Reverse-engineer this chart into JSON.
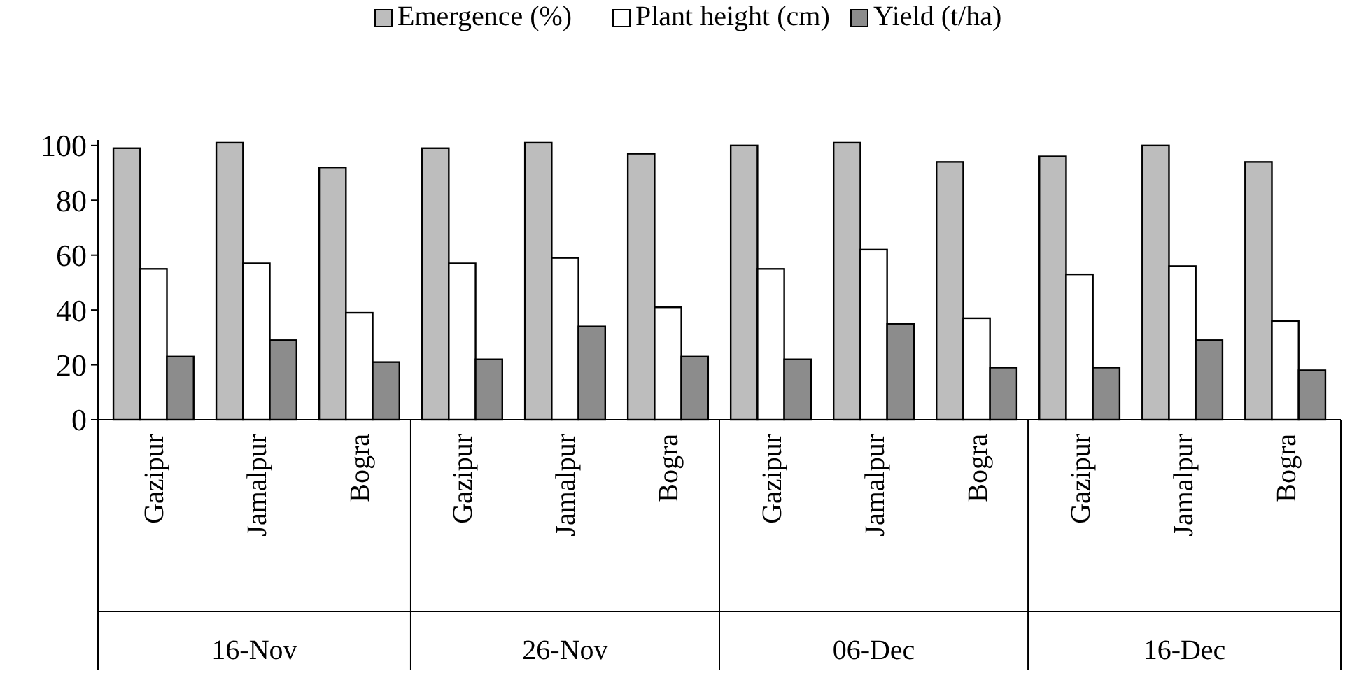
{
  "chart_data": {
    "type": "bar",
    "categories": [
      "Gazipur",
      "Jamalpur",
      "Bogra",
      "Gazipur",
      "Jamalpur",
      "Bogra",
      "Gazipur",
      "Jamalpur",
      "Bogra",
      "Gazipur",
      "Jamalpur",
      "Bogra"
    ],
    "series": [
      {
        "name": "Emergence (%)",
        "color": "#bdbdbd",
        "values": [
          99,
          101,
          92,
          99,
          101,
          97,
          100,
          101,
          94,
          96,
          100,
          94
        ]
      },
      {
        "name": "Plant height (cm)",
        "color": "#ffffff",
        "values": [
          55,
          57,
          39,
          57,
          59,
          41,
          55,
          62,
          37,
          53,
          56,
          36
        ]
      },
      {
        "name": "Yield (t/ha)",
        "color": "#8c8c8c",
        "values": [
          23,
          29,
          21,
          22,
          34,
          23,
          22,
          35,
          19,
          19,
          29,
          18
        ]
      }
    ],
    "annotations": [
      "16-Nov",
      "26-Nov",
      "06-Dec",
      "16-Dec"
    ],
    "ylim": [
      0,
      102
    ],
    "yticks": [
      0,
      20,
      40,
      60,
      80,
      100
    ],
    "grid": false,
    "legend": "top"
  }
}
